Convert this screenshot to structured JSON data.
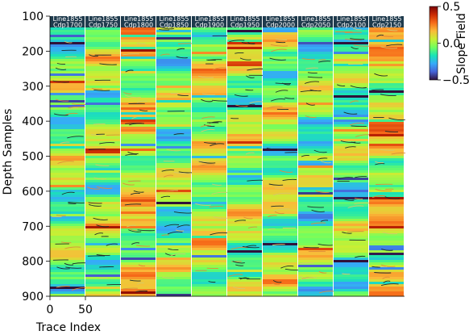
{
  "chart_data": {
    "type": "heatmap",
    "xlabel": "Trace Index",
    "ylabel": "Depth Samples",
    "colorbar_label": "Slope Field",
    "x_ticks": [
      0,
      50
    ],
    "y_ticks": [
      100,
      200,
      300,
      400,
      500,
      600,
      700,
      800,
      900
    ],
    "ylim": [
      900,
      100
    ],
    "color_range": [
      -0.5,
      0.5
    ],
    "colorbar_ticks": [
      0.5,
      0.0,
      -0.5
    ],
    "colorbar_tick_labels": [
      "0.5",
      "0.0",
      "−0.5"
    ],
    "colormap": [
      "#30123b",
      "#4662d7",
      "#36aaf9",
      "#1ae4b6",
      "#72fe5e",
      "#c8ef34",
      "#faba39",
      "#f66b19",
      "#ca2a04",
      "#7a0403"
    ],
    "panels": [
      {
        "line": "Line1855",
        "cdp": "Cdp1700"
      },
      {
        "line": "Line1855",
        "cdp": "Cdp1750"
      },
      {
        "line": "Line1855",
        "cdp": "Cdp1800"
      },
      {
        "line": "Line1855",
        "cdp": "Cdp1850"
      },
      {
        "line": "Line1855",
        "cdp": "Cdp1900"
      },
      {
        "line": "Line1855",
        "cdp": "Cdp1950"
      },
      {
        "line": "Line1855",
        "cdp": "Cdp2000"
      },
      {
        "line": "Line1855",
        "cdp": "Cdp2050"
      },
      {
        "line": "Line1855",
        "cdp": "Cdp2100"
      },
      {
        "line": "Line1855",
        "cdp": "Cdp2150"
      }
    ]
  }
}
